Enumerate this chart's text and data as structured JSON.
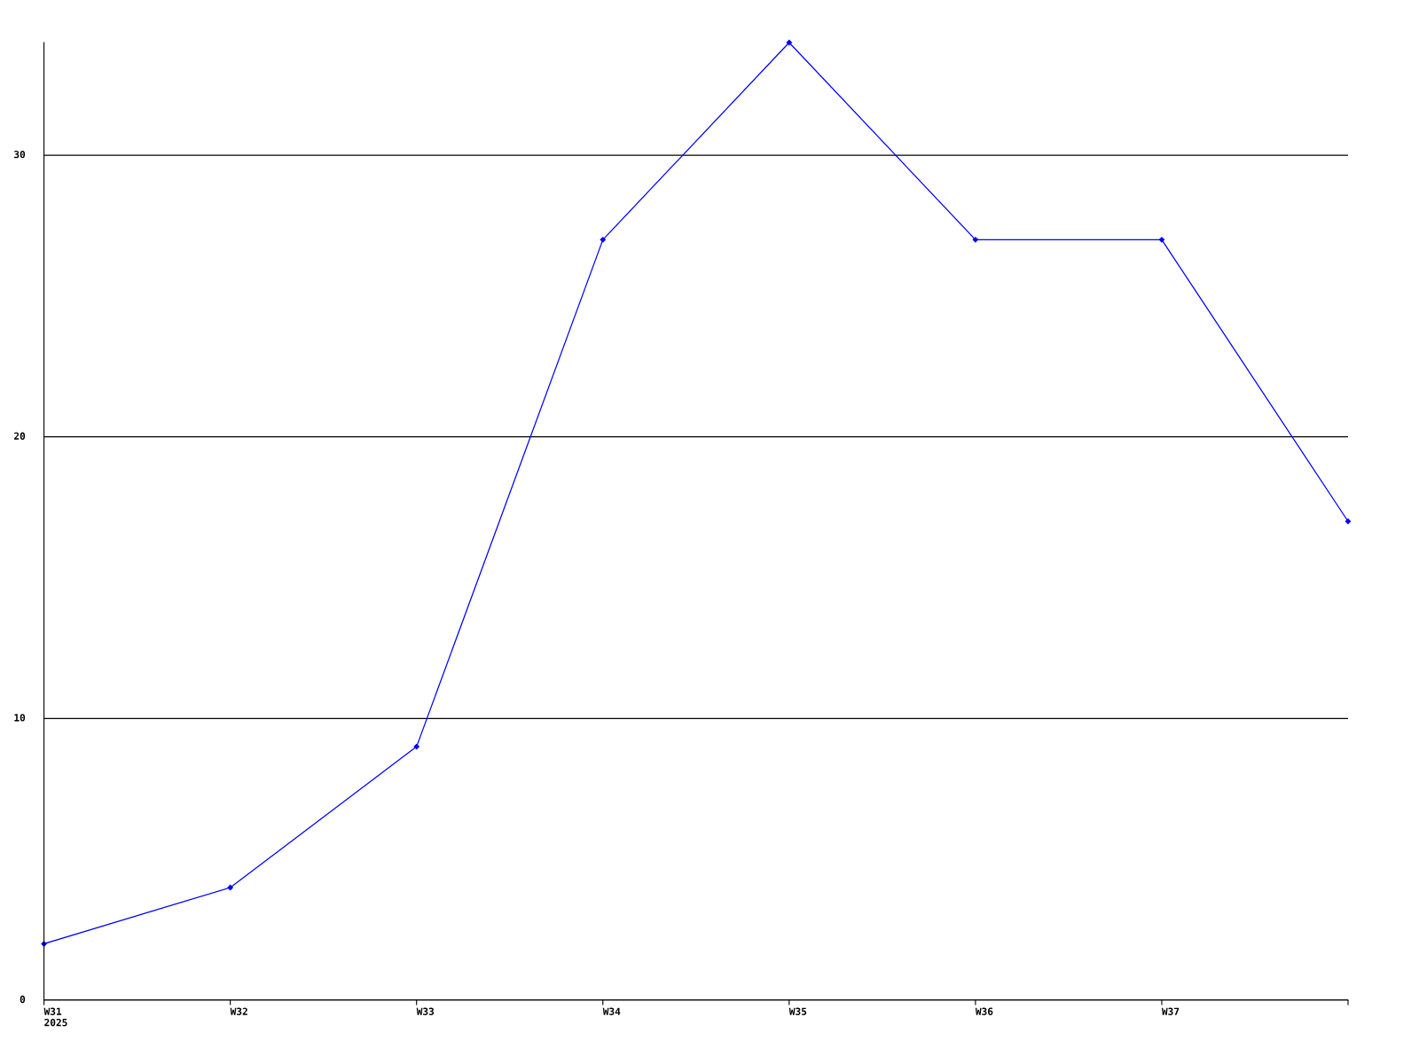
{
  "chart_data": {
    "type": "line",
    "categories": [
      "W31\n2025",
      "W32",
      "W33",
      "W34",
      "W35",
      "W36",
      "W37",
      null
    ],
    "series": [
      {
        "color": "#0000ff",
        "values": [
          2,
          4,
          9,
          27,
          34,
          27,
          27,
          17
        ]
      }
    ],
    "ylim": [
      0,
      34
    ],
    "yticks": [
      0,
      10,
      20,
      30
    ],
    "grid": "y",
    "marker": "diamond",
    "line_style": "solid",
    "legend": false
  }
}
